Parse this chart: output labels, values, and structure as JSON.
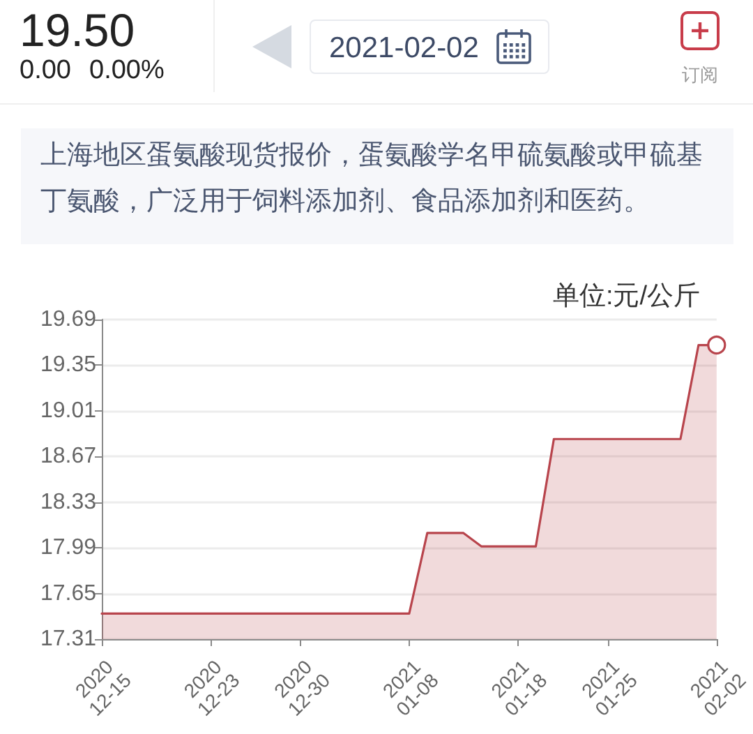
{
  "chart_data": {
    "type": "area",
    "subtitle": "上海地区蛋氨酸现货报价，蛋氨酸学名甲硫氨酸或甲硫基丁氨酸，广泛用于饲料添加剂、食品添加剂和医药。",
    "ylabel": "单位:元/公斤",
    "annotations": [
      "19.50",
      "0.00",
      "0.00%",
      "2021-02-02",
      "订阅"
    ],
    "categories": [
      "2020\n12-15",
      null,
      null,
      null,
      null,
      null,
      "2020\n12-23",
      null,
      null,
      null,
      null,
      "2020\n12-30",
      null,
      null,
      null,
      null,
      null,
      "2021\n01-08",
      null,
      null,
      null,
      null,
      null,
      "2021\n01-18",
      null,
      null,
      null,
      null,
      "2021\n01-25",
      null,
      null,
      null,
      null,
      null,
      "2021\n02-02"
    ],
    "series": [
      {
        "color": "#b8444c",
        "values": [
          17.5,
          17.5,
          17.5,
          17.5,
          17.5,
          17.5,
          17.5,
          17.5,
          17.5,
          17.5,
          17.5,
          17.5,
          17.5,
          17.5,
          17.5,
          17.5,
          17.5,
          17.5,
          18.1,
          18.1,
          18.1,
          18.0,
          18.0,
          18.0,
          18.0,
          18.8,
          18.8,
          18.8,
          18.8,
          18.8,
          18.8,
          18.8,
          18.8,
          19.5,
          19.5
        ]
      },
      {
        "type": "scatter",
        "x": [
          "2021\n02-02"
        ],
        "values": [
          19.5
        ],
        "color": "#ffffff",
        "marker": "circle"
      }
    ],
    "ylim": [
      17.31,
      19.69
    ],
    "yticks": [
      17.31,
      17.65,
      17.99,
      18.33,
      18.67,
      19.01,
      19.35,
      19.69
    ],
    "grid": "y",
    "marker": "none",
    "line_style": "solid"
  }
}
